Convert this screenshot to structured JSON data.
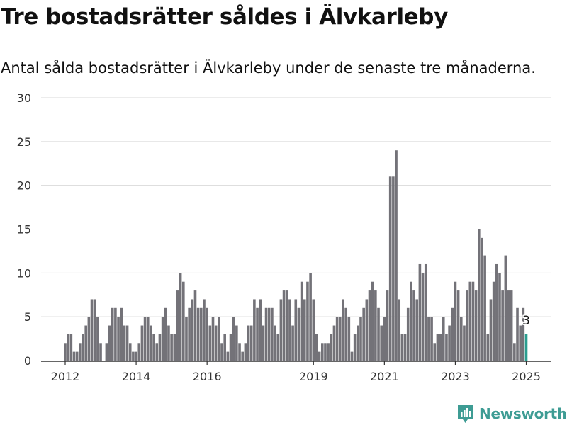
{
  "header": {
    "title": "Tre bostadsrätter såldes i Älvkarleby",
    "subtitle": "Antal sålda bostadsrätter i Älvkarleby under de senaste tre månaderna."
  },
  "brand": {
    "name": "Newsworthy",
    "icon": "newsworthy-logo-icon"
  },
  "colors": {
    "bar": "#737278",
    "highlight": "#2a9d8f",
    "grid": "#d9d9d9",
    "axis": "#333333",
    "brand": "#3e9c94"
  },
  "chart_data": {
    "type": "bar",
    "title": "",
    "xlabel": "",
    "ylabel": "",
    "ylim": [
      0,
      30
    ],
    "yticks": [
      0,
      5,
      10,
      15,
      20,
      25,
      30
    ],
    "xticks": [
      "2012",
      "2014",
      "2016",
      "2019",
      "2021",
      "2023",
      "2025"
    ],
    "start_month": "2012-01",
    "values": [
      2,
      3,
      3,
      1,
      1,
      2,
      3,
      4,
      5,
      7,
      7,
      5,
      2,
      0,
      2,
      4,
      6,
      6,
      5,
      6,
      4,
      4,
      2,
      1,
      1,
      2,
      4,
      5,
      5,
      4,
      3,
      2,
      3,
      5,
      6,
      4,
      3,
      3,
      8,
      10,
      9,
      5,
      6,
      7,
      8,
      6,
      6,
      7,
      6,
      4,
      5,
      4,
      5,
      2,
      3,
      1,
      3,
      5,
      4,
      2,
      1,
      2,
      4,
      4,
      7,
      6,
      7,
      4,
      6,
      6,
      6,
      4,
      3,
      7,
      8,
      8,
      7,
      4,
      7,
      6,
      9,
      7,
      9,
      10,
      7,
      3,
      1,
      2,
      2,
      2,
      3,
      4,
      5,
      5,
      7,
      6,
      5,
      1,
      3,
      4,
      5,
      6,
      7,
      8,
      9,
      8,
      6,
      4,
      5,
      8,
      21,
      21,
      24,
      7,
      3,
      3,
      6,
      9,
      8,
      7,
      11,
      10,
      11,
      5,
      5,
      2,
      3,
      3,
      5,
      3,
      4,
      6,
      9,
      8,
      5,
      4,
      8,
      9,
      9,
      8,
      15,
      14,
      12,
      3,
      7,
      9,
      11,
      10,
      8,
      12,
      8,
      8,
      2,
      6,
      4,
      6,
      3
    ],
    "highlight_last": true,
    "highlight_label": "3"
  }
}
